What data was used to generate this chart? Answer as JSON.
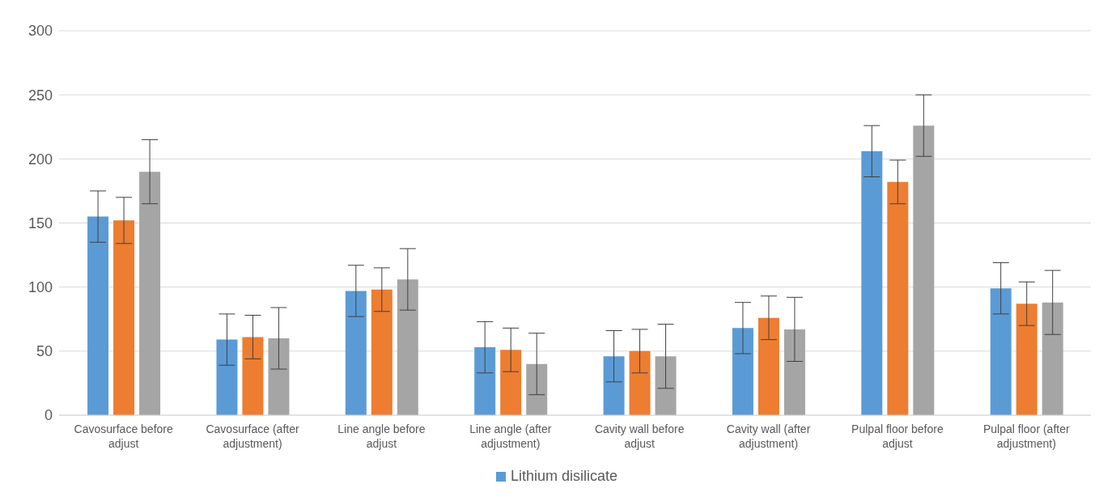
{
  "chart_data": {
    "type": "bar",
    "categories": [
      "Cavosurface before adjust",
      "Cavosurface (after adjustment)",
      "Line angle before adjust",
      "Line angle (after adjustment)",
      "Cavity wall before adjust",
      "Cavity wall (after adjustment)",
      "Pulpal floor before adjust",
      "Pulpal floor (after adjustment)"
    ],
    "series": [
      {
        "name": "Lithium disilicate",
        "color": "#5b9bd5",
        "values": [
          155,
          59,
          97,
          53,
          46,
          68,
          206,
          99
        ],
        "errors": [
          20,
          20,
          20,
          20,
          20,
          20,
          20,
          20
        ]
      },
      {
        "color": "#ed7d31",
        "values": [
          152,
          61,
          98,
          51,
          50,
          76,
          182,
          87
        ],
        "errors": [
          18,
          17,
          17,
          17,
          17,
          17,
          17,
          17
        ]
      },
      {
        "color": "#a5a5a5",
        "values": [
          190,
          60,
          106,
          40,
          46,
          67,
          226,
          88
        ],
        "errors": [
          25,
          24,
          24,
          24,
          25,
          25,
          24,
          25
        ]
      }
    ],
    "ylim": [
      0,
      300
    ],
    "yticks": [
      0,
      50,
      100,
      150,
      200,
      250,
      300
    ],
    "grid": "y",
    "legend": "bottom"
  }
}
